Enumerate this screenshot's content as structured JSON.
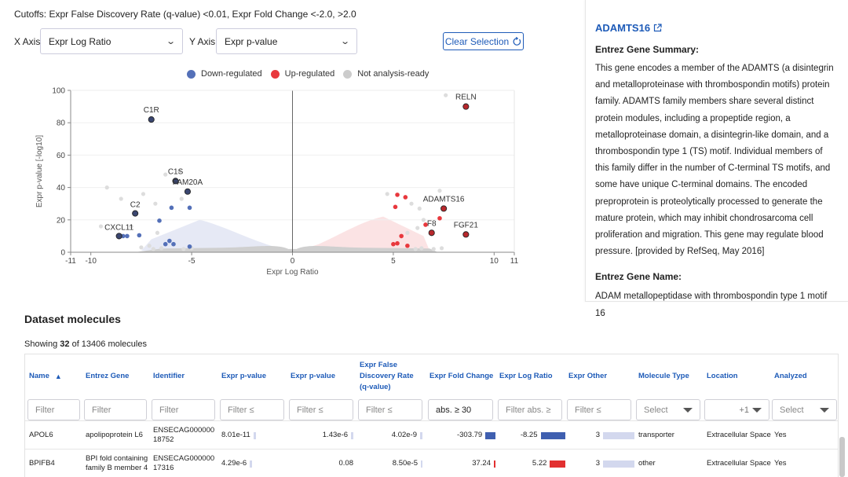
{
  "cutoffs_text": "Cutoffs:  Expr False Discovery Rate (q-value) <0.01, Expr Fold Change <-2.0, >2.0",
  "x_axis": {
    "label": "X Axis:",
    "value": "Expr Log Ratio"
  },
  "y_axis": {
    "label": "Y Axis:",
    "value": "Expr p-value"
  },
  "clear_selection_label": "Clear Selection",
  "legend": [
    {
      "label": "Down-regulated",
      "color": "#5470b8"
    },
    {
      "label": "Up-regulated",
      "color": "#e8383d"
    },
    {
      "label": "Not analysis-ready",
      "color": "#cccccc"
    }
  ],
  "chart_data": {
    "type": "scatter",
    "xlabel": "Expr Log Ratio",
    "ylabel": "Expr p-value [-log10]",
    "xlim": [
      -11,
      11
    ],
    "ylim": [
      0,
      100
    ],
    "x_ticks": [
      -11,
      -10,
      -5,
      0,
      5,
      10,
      11
    ],
    "y_ticks": [
      0,
      20,
      40,
      60,
      80,
      100
    ],
    "labeled_points": [
      {
        "name": "C1R",
        "x": -7.0,
        "y": 82,
        "group": "down"
      },
      {
        "name": "C1S",
        "x": -5.8,
        "y": 44,
        "group": "down"
      },
      {
        "name": "FAM20A",
        "x": -5.2,
        "y": 37.5,
        "group": "down"
      },
      {
        "name": "C2",
        "x": -7.8,
        "y": 24,
        "group": "down"
      },
      {
        "name": "CXCL11",
        "x": -8.6,
        "y": 10,
        "group": "down"
      },
      {
        "name": "RELN",
        "x": 8.6,
        "y": 90,
        "group": "up"
      },
      {
        "name": "ADAMTS16",
        "x": 7.5,
        "y": 27,
        "group": "up"
      },
      {
        "name": "F8",
        "x": 6.9,
        "y": 12,
        "group": "up"
      },
      {
        "name": "FGF21",
        "x": 8.6,
        "y": 11,
        "group": "up"
      }
    ],
    "down_points": [
      {
        "x": -5.1,
        "y": 27.5
      },
      {
        "x": -6.0,
        "y": 27.5
      },
      {
        "x": -6.6,
        "y": 19.5
      },
      {
        "x": -7.6,
        "y": 10.5
      },
      {
        "x": -8.2,
        "y": 10
      },
      {
        "x": -8.4,
        "y": 10
      },
      {
        "x": -6.1,
        "y": 7
      },
      {
        "x": -6.3,
        "y": 5
      },
      {
        "x": -5.9,
        "y": 5
      },
      {
        "x": -5.1,
        "y": 3.5
      }
    ],
    "up_points": [
      {
        "x": 5.2,
        "y": 35.5
      },
      {
        "x": 5.6,
        "y": 34
      },
      {
        "x": 5.1,
        "y": 28
      },
      {
        "x": 7.3,
        "y": 21
      },
      {
        "x": 6.6,
        "y": 17
      },
      {
        "x": 5.4,
        "y": 10
      },
      {
        "x": 5.0,
        "y": 5
      },
      {
        "x": 5.2,
        "y": 5.5
      },
      {
        "x": 5.7,
        "y": 4
      }
    ],
    "grid": true,
    "legend_position": "top"
  },
  "panel": {
    "gene_name": "ADAMTS16",
    "summary_heading": "Entrez Gene Summary:",
    "summary_text": "This gene encodes a member of the ADAMTS (a disintegrin and metalloproteinase with thrombospondin motifs) protein family. ADAMTS family members share several distinct protein modules, including a propeptide region, a metalloproteinase domain, a disintegrin-like domain, and a thrombospondin type 1 (TS) motif. Individual members of this family differ in the number of C-terminal TS motifs, and some have unique C-terminal domains. The encoded preproprotein is proteolytically processed to generate the mature protein, which may inhibit chondrosarcoma cell proliferation and migration. This gene may regulate blood pressure. [provided by RefSeq, May 2016]",
    "name_heading": "Entrez Gene Name:",
    "name_text": "ADAM metallopeptidase with thrombospondin type 1 motif 16"
  },
  "dataset": {
    "title": "Dataset molecules",
    "showing_prefix": "Showing ",
    "showing_count": "32",
    "showing_suffix": " of 13406 molecules"
  },
  "table": {
    "headers": [
      "Name",
      "Entrez Gene",
      "Identifier",
      "Expr p-value",
      "Expr p-value",
      "Expr False Discovery Rate (q-value)",
      "Expr Fold Change",
      "Expr Log Ratio",
      "Expr Other",
      "Molecule Type",
      "Location",
      "Analyzed"
    ],
    "sort_indicator": "▲",
    "filters": [
      "Filter",
      "Filter",
      "Filter",
      "Filter ≤",
      "Filter ≤",
      "Filter ≤",
      "abs. ≥ 30",
      "Filter abs. ≥",
      "Filter ≤",
      "Select",
      "+1",
      "Select"
    ],
    "rows": [
      {
        "name": "APOL6",
        "entrez": "apolipoprotein L6",
        "identifier": "ENSECAG000000 18752",
        "p1": "8.01e-11",
        "p2": "1.43e-6",
        "q": "4.02e-9",
        "fold": "-303.79",
        "fold_color": "#3f5fb0",
        "fold_bar": 0.16,
        "log": "-8.25",
        "log_color": "#3f5fb0",
        "log_bar": 0.45,
        "other": "3",
        "type": "transporter",
        "location": "Extracellular Space",
        "analyzed": "Yes"
      },
      {
        "name": "BPIFB4",
        "entrez": "BPI fold containing family B member 4",
        "identifier": "ENSECAG000000 17316",
        "p1": "4.29e-6",
        "p2": "0.08",
        "q": "8.50e-5",
        "fold": "37.24",
        "fold_color": "#e23030",
        "fold_bar": 0.02,
        "log": "5.22",
        "log_color": "#e23030",
        "log_bar": 0.28,
        "other": "3",
        "type": "other",
        "location": "Extracellular Space",
        "analyzed": "Yes"
      }
    ]
  }
}
